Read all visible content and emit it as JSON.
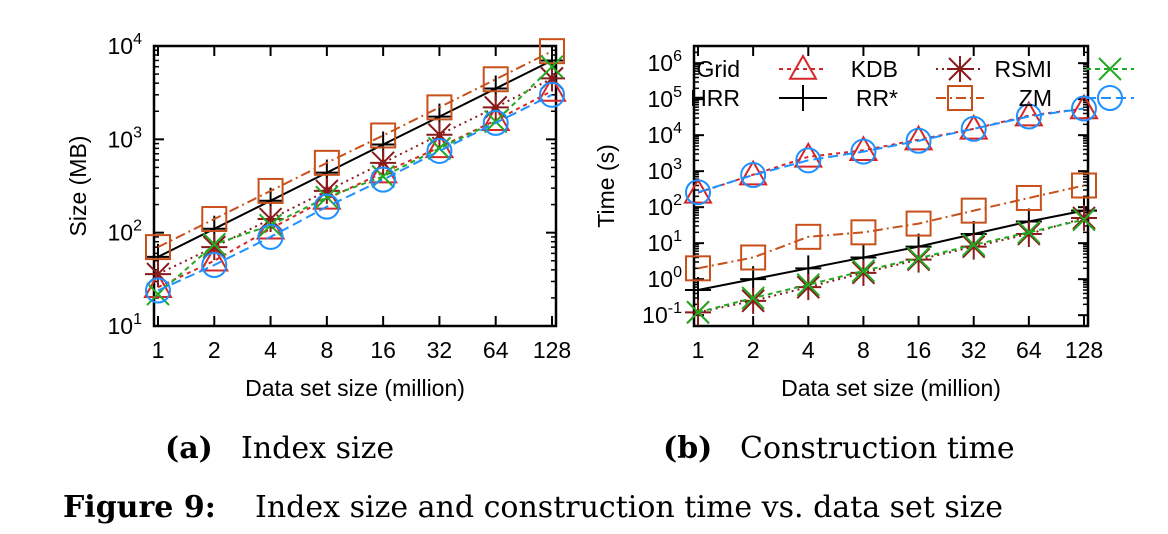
{
  "figure_caption": {
    "label": "Figure 9:",
    "text": "Index size and construction time vs. data set size"
  },
  "styles": {
    "Grid": {
      "color": "#d62728",
      "marker": "triangle",
      "dash": "4,4"
    },
    "HRR": {
      "color": "#000000",
      "marker": "plus",
      "dash": ""
    },
    "KDB": {
      "color": "#8b1a1a",
      "marker": "asterisk",
      "dash": "2,4"
    },
    "RR*": {
      "color": "#c8501a",
      "marker": "square",
      "dash": "10,4,2,4"
    },
    "RSMI": {
      "color": "#22aa22",
      "marker": "x",
      "dash": "5,4"
    },
    "ZM": {
      "color": "#1e90ff",
      "marker": "circle",
      "dash": "10,5"
    }
  },
  "chart_data": [
    {
      "id": "a",
      "type": "line",
      "caption_label": "(a)",
      "caption_text": "Index size",
      "xlabel": "Data set size (million)",
      "ylabel": "Size (MB)",
      "yscale": "log",
      "ylim": [
        10,
        10000
      ],
      "categories": [
        "1",
        "2",
        "4",
        "8",
        "16",
        "32",
        "64",
        "128"
      ],
      "y_ticks": [
        {
          "base": "10",
          "exp": "1"
        },
        {
          "base": "10",
          "exp": "2"
        },
        {
          "base": "10",
          "exp": "3"
        },
        {
          "base": "10",
          "exp": "4"
        }
      ],
      "grid": false,
      "series": [
        {
          "name": "Grid",
          "values": [
            26,
            50,
            110,
            230,
            440,
            820,
            1600,
            3300
          ]
        },
        {
          "name": "HRR",
          "values": [
            55,
            110,
            220,
            440,
            880,
            1750,
            3500,
            7000
          ]
        },
        {
          "name": "KDB",
          "values": [
            36,
            70,
            140,
            280,
            560,
            1120,
            2200,
            4500
          ]
        },
        {
          "name": "RR*",
          "values": [
            70,
            140,
            280,
            560,
            1100,
            2200,
            4400,
            8800
          ]
        },
        {
          "name": "RSMI",
          "values": [
            22,
            75,
            120,
            240,
            400,
            800,
            1550,
            6000
          ]
        },
        {
          "name": "ZM",
          "values": [
            24,
            45,
            90,
            190,
            370,
            750,
            1500,
            3000
          ]
        }
      ]
    },
    {
      "id": "b",
      "type": "line",
      "caption_label": "(b)",
      "caption_text": "Construction time",
      "xlabel": "Data set size (million)",
      "ylabel": "Time (s)",
      "yscale": "log",
      "ylim": [
        0.05,
        3000000
      ],
      "categories": [
        "1",
        "2",
        "4",
        "8",
        "16",
        "32",
        "64",
        "128"
      ],
      "y_ticks": [
        {
          "base": "10",
          "exp": "-1"
        },
        {
          "base": "10",
          "exp": "0"
        },
        {
          "base": "10",
          "exp": "1"
        },
        {
          "base": "10",
          "exp": "2"
        },
        {
          "base": "10",
          "exp": "3"
        },
        {
          "base": "10",
          "exp": "4"
        },
        {
          "base": "10",
          "exp": "5"
        },
        {
          "base": "10",
          "exp": "6"
        }
      ],
      "grid": false,
      "legend": {
        "placement": "top",
        "columns": 3,
        "order": [
          "Grid",
          "KDB",
          "RSMI",
          "HRR",
          "RR*",
          "ZM"
        ]
      },
      "series": [
        {
          "name": "Grid",
          "values": [
            250,
            800,
            2500,
            3800,
            7500,
            15000,
            35000,
            55000
          ]
        },
        {
          "name": "HRR",
          "values": [
            0.5,
            1.0,
            2.0,
            4.0,
            8.0,
            18,
            40,
            80
          ]
        },
        {
          "name": "KDB",
          "values": [
            0.12,
            0.25,
            0.6,
            1.5,
            3.5,
            8,
            18,
            50
          ]
        },
        {
          "name": "RR*",
          "values": [
            2.0,
            4.0,
            15,
            20,
            35,
            80,
            180,
            400
          ]
        },
        {
          "name": "RSMI",
          "values": [
            0.12,
            0.3,
            0.7,
            1.7,
            3.8,
            9,
            20,
            45
          ]
        },
        {
          "name": "ZM",
          "values": [
            260,
            780,
            2000,
            3500,
            7000,
            15000,
            33000,
            55000
          ]
        }
      ]
    }
  ]
}
